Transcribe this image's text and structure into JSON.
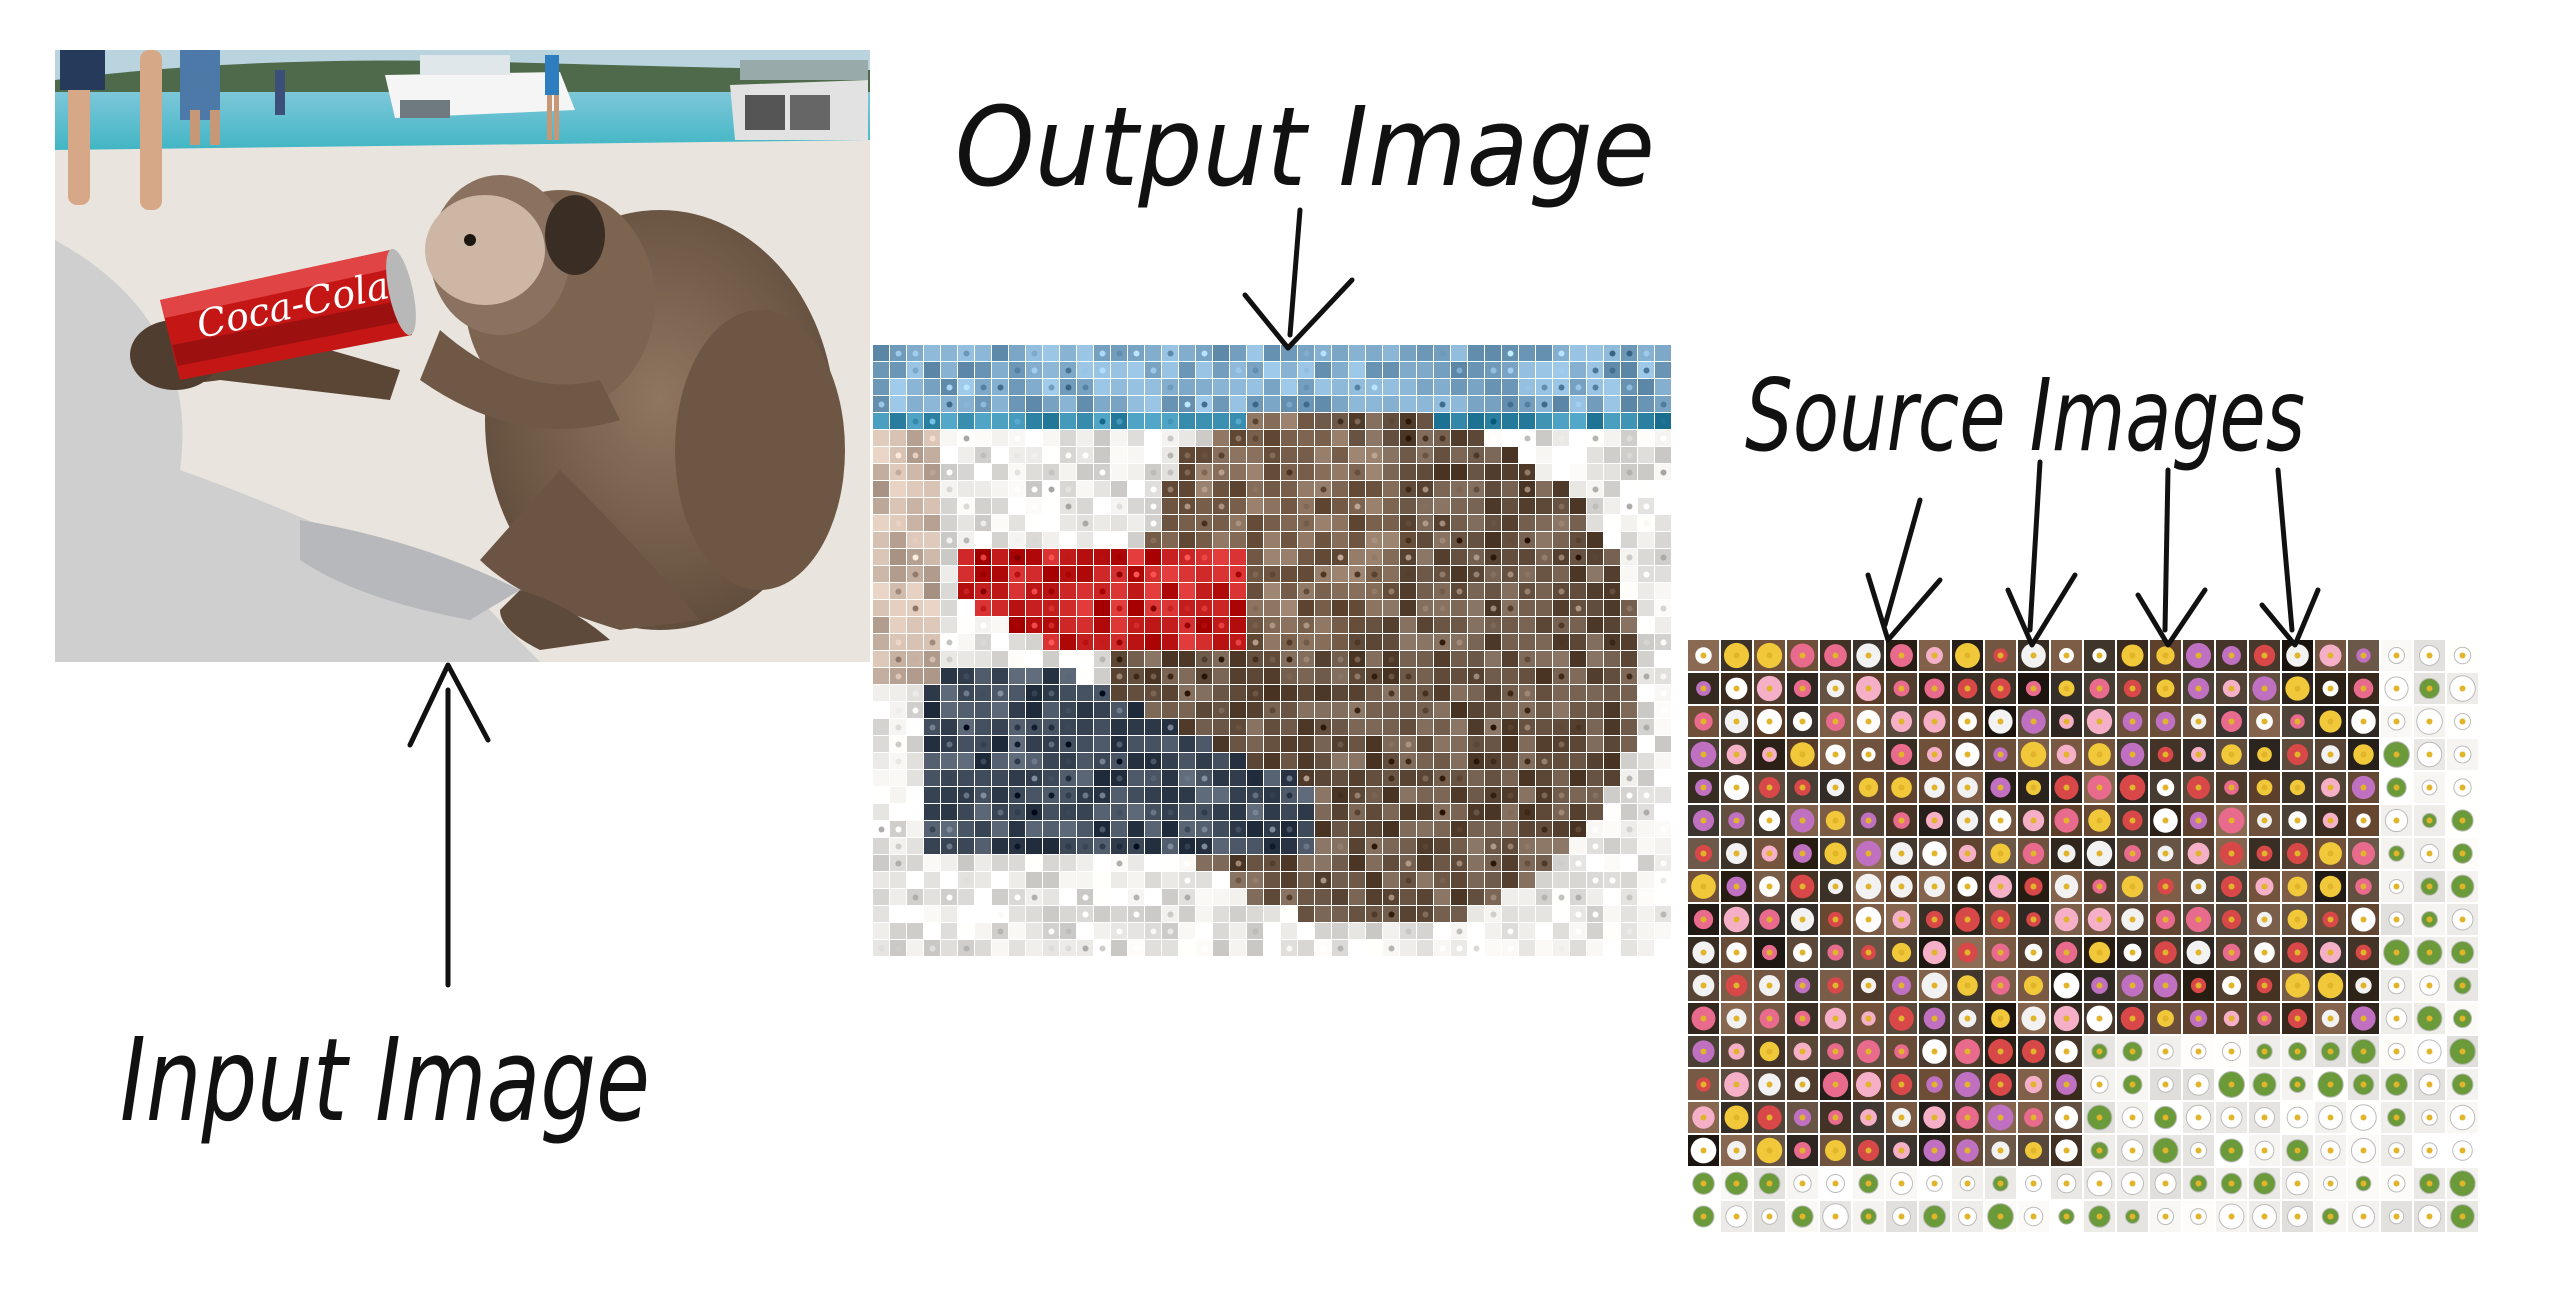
{
  "labels": {
    "output": "Output Image",
    "source": "Source Images",
    "input": "Input Image"
  },
  "photo": {
    "can_text": "Coca-Cola"
  },
  "colors": {
    "ink": "#111111",
    "sky": "#9fc9e6",
    "sea": "#2db3c4",
    "sand": "#e9e3da",
    "monkey": "#7a6350",
    "monkey_dark": "#4a3a2c",
    "can_red": "#c91a1a",
    "mosaic_white": "#ecebe8"
  }
}
